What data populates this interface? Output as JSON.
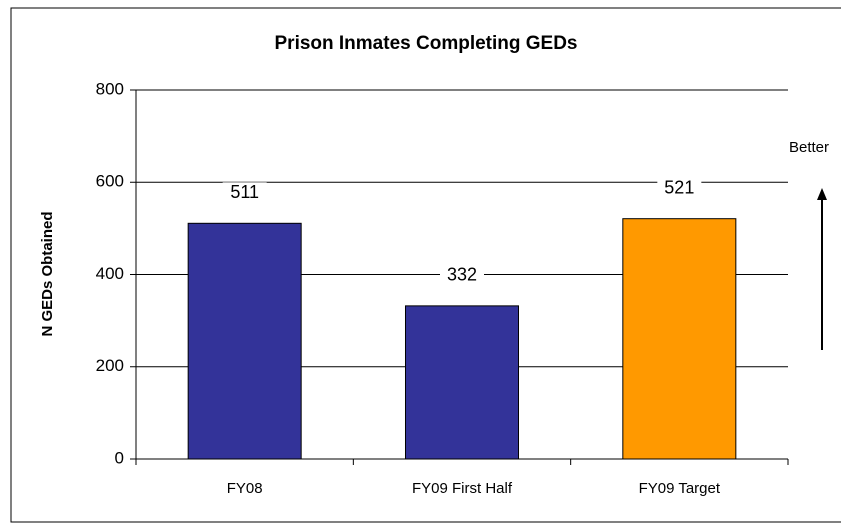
{
  "chart_data": {
    "type": "bar",
    "title": "Prison Inmates Completing GEDs",
    "categories": [
      "FY08",
      "FY09 First Half",
      "FY09 Target"
    ],
    "values": [
      511,
      332,
      521
    ],
    "colors": [
      "#333399",
      "#333399",
      "#ff9900"
    ],
    "y_label": "N GEDs Obtained",
    "annotation": "Better",
    "ylim": [
      0,
      800
    ],
    "yticks": [
      0,
      200,
      400,
      600,
      800
    ],
    "grid": true
  }
}
